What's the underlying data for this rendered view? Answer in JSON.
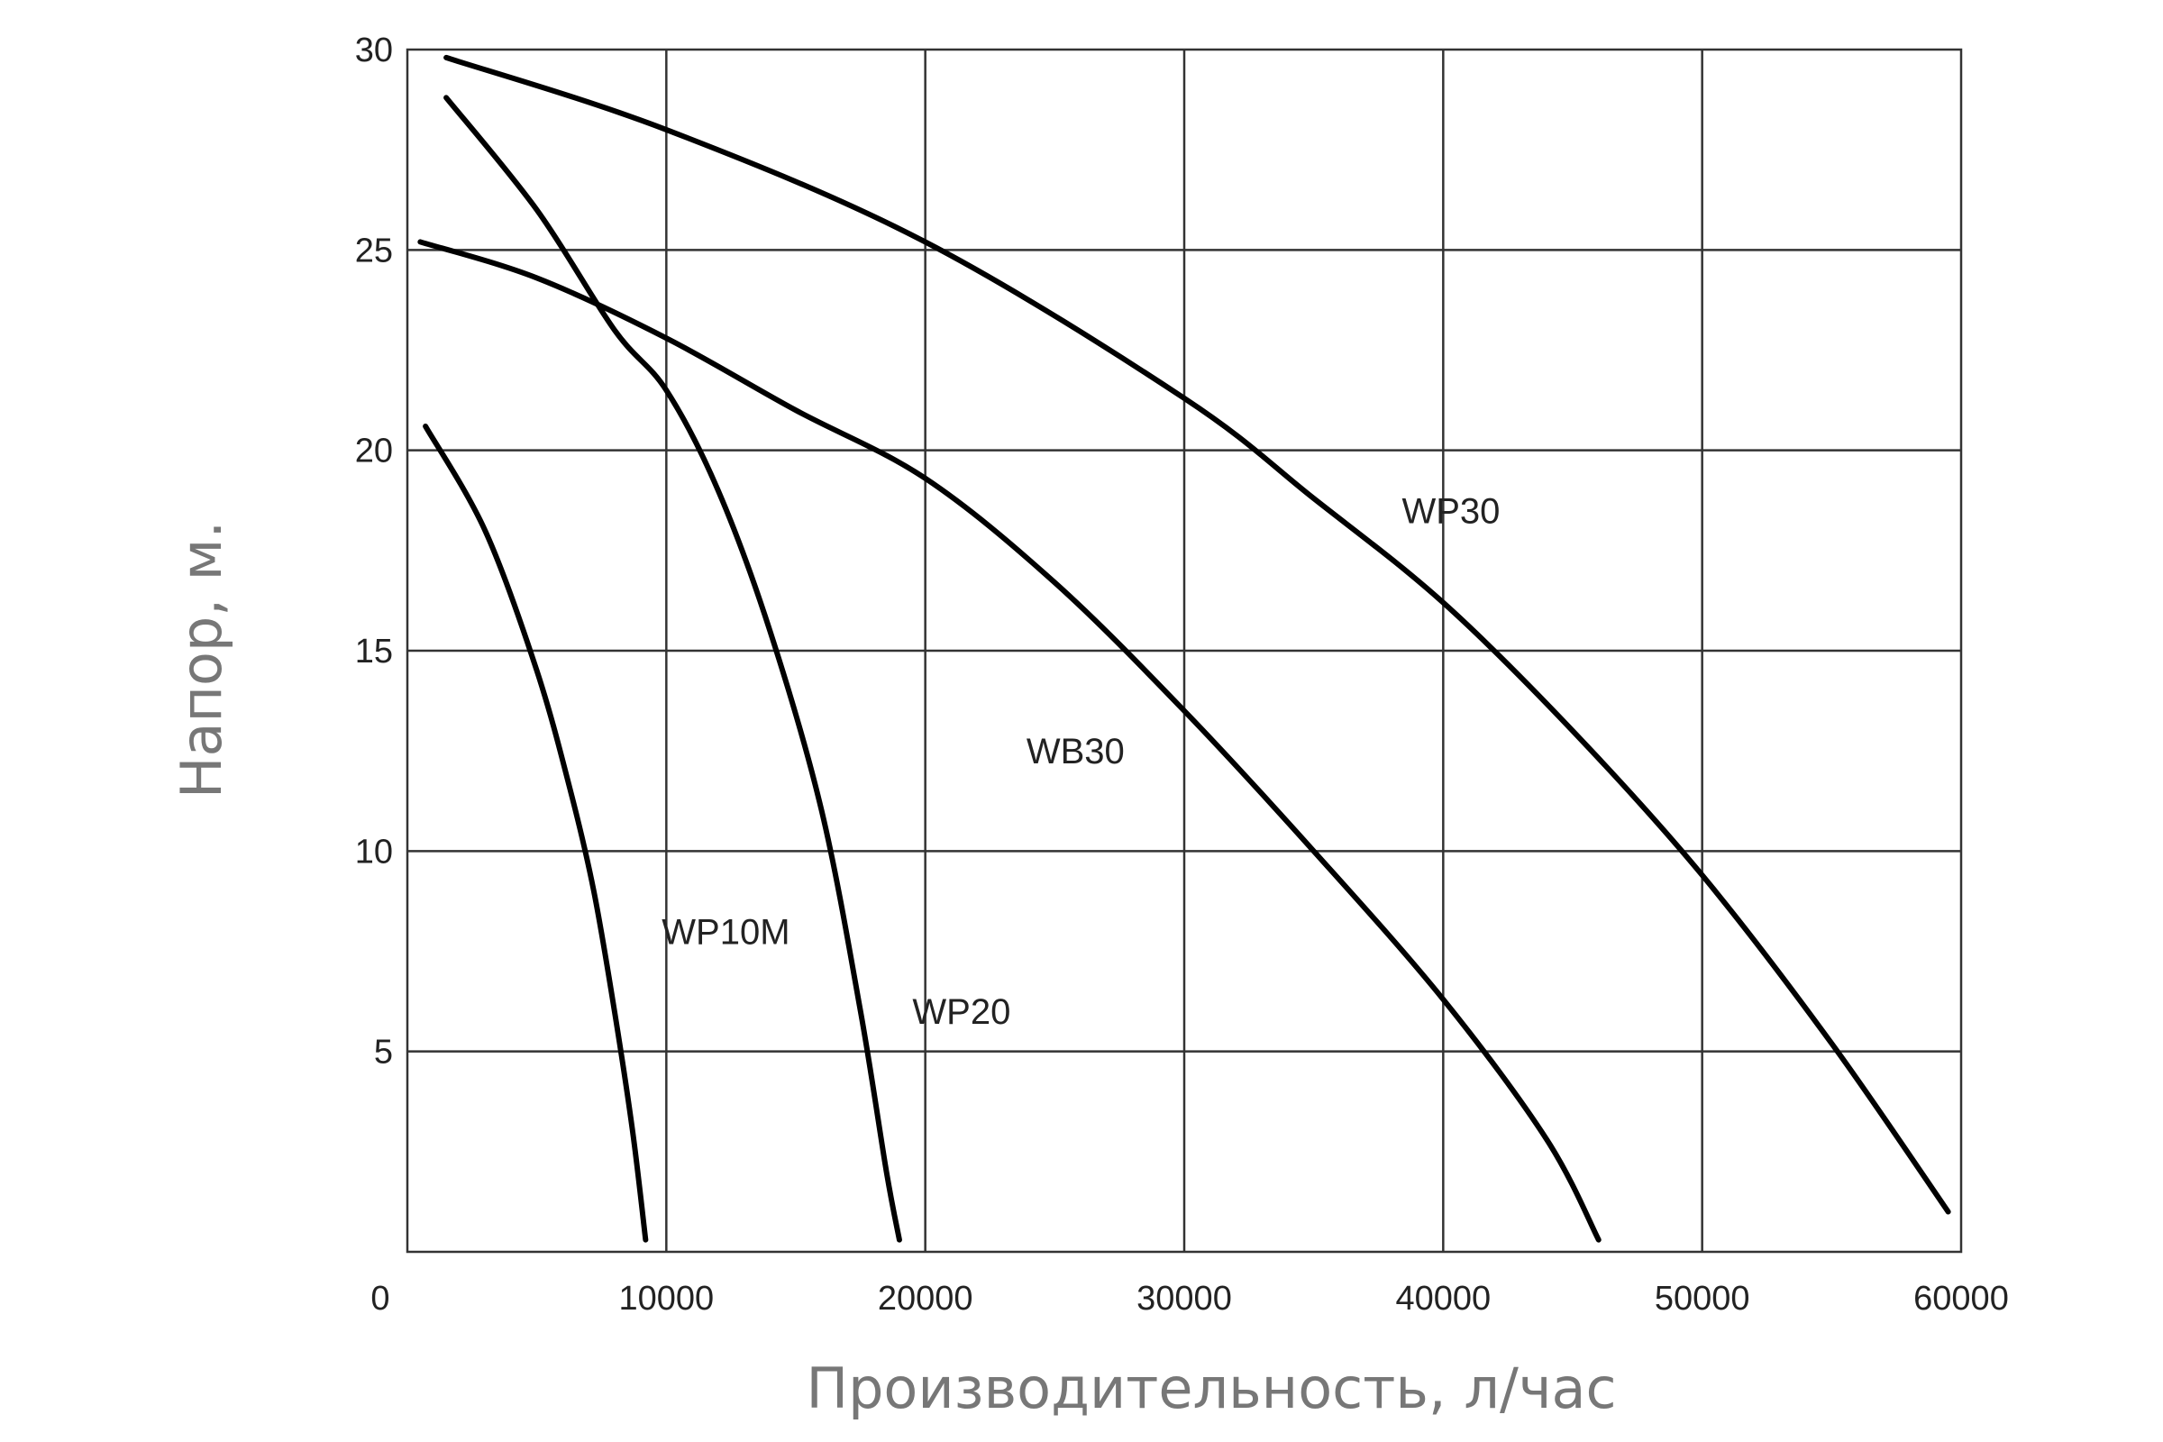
{
  "chart_data": {
    "type": "line",
    "title": "",
    "xlabel": "Производительность, л/час",
    "ylabel": "Напор, м.",
    "xlim": [
      0,
      60000
    ],
    "ylim": [
      0,
      30
    ],
    "grid": true,
    "xticks": [
      {
        "value": 0,
        "label": "0"
      },
      {
        "value": 10000,
        "label": "10000"
      },
      {
        "value": 20000,
        "label": "20000"
      },
      {
        "value": 30000,
        "label": "30000"
      },
      {
        "value": 40000,
        "label": "40000"
      },
      {
        "value": 50000,
        "label": "50000"
      },
      {
        "value": 60000,
        "label": "60000"
      }
    ],
    "yticks": [
      {
        "value": 5,
        "label": "5"
      },
      {
        "value": 10,
        "label": "10"
      },
      {
        "value": 15,
        "label": "15"
      },
      {
        "value": 20,
        "label": "20"
      },
      {
        "value": 25,
        "label": "25"
      },
      {
        "value": 30,
        "label": "30"
      }
    ],
    "series": [
      {
        "name": "WP10M",
        "label_at": {
          "x": 12300,
          "y": 8.0
        },
        "points": [
          [
            700,
            20.6
          ],
          [
            3000,
            18.0
          ],
          [
            5000,
            14.5
          ],
          [
            6300,
            11.5
          ],
          [
            7200,
            9.0
          ],
          [
            8000,
            6.0
          ],
          [
            8700,
            3.0
          ],
          [
            9200,
            0.3
          ]
        ]
      },
      {
        "name": "WP20",
        "label_at": {
          "x": 21400,
          "y": 6.0
        },
        "points": [
          [
            1500,
            28.8
          ],
          [
            5000,
            26.0
          ],
          [
            8000,
            23.0
          ],
          [
            10000,
            21.5
          ],
          [
            12000,
            19.0
          ],
          [
            14000,
            15.5
          ],
          [
            16000,
            11.0
          ],
          [
            17500,
            6.0
          ],
          [
            18500,
            2.0
          ],
          [
            19000,
            0.3
          ]
        ]
      },
      {
        "name": "WB30",
        "label_at": {
          "x": 25800,
          "y": 12.5
        },
        "points": [
          [
            500,
            25.2
          ],
          [
            5000,
            24.3
          ],
          [
            10000,
            22.8
          ],
          [
            15000,
            21.0
          ],
          [
            20000,
            19.3
          ],
          [
            25000,
            16.7
          ],
          [
            30000,
            13.5
          ],
          [
            35000,
            10.0
          ],
          [
            40000,
            6.3
          ],
          [
            44000,
            2.8
          ],
          [
            46000,
            0.3
          ]
        ]
      },
      {
        "name": "WP30",
        "label_at": {
          "x": 40300,
          "y": 18.5
        },
        "points": [
          [
            1500,
            29.8
          ],
          [
            10000,
            28.0
          ],
          [
            20000,
            25.2
          ],
          [
            30000,
            21.3
          ],
          [
            35000,
            18.8
          ],
          [
            40000,
            16.2
          ],
          [
            45000,
            13.0
          ],
          [
            50000,
            9.4
          ],
          [
            55000,
            5.2
          ],
          [
            59500,
            1.0
          ]
        ]
      }
    ]
  }
}
